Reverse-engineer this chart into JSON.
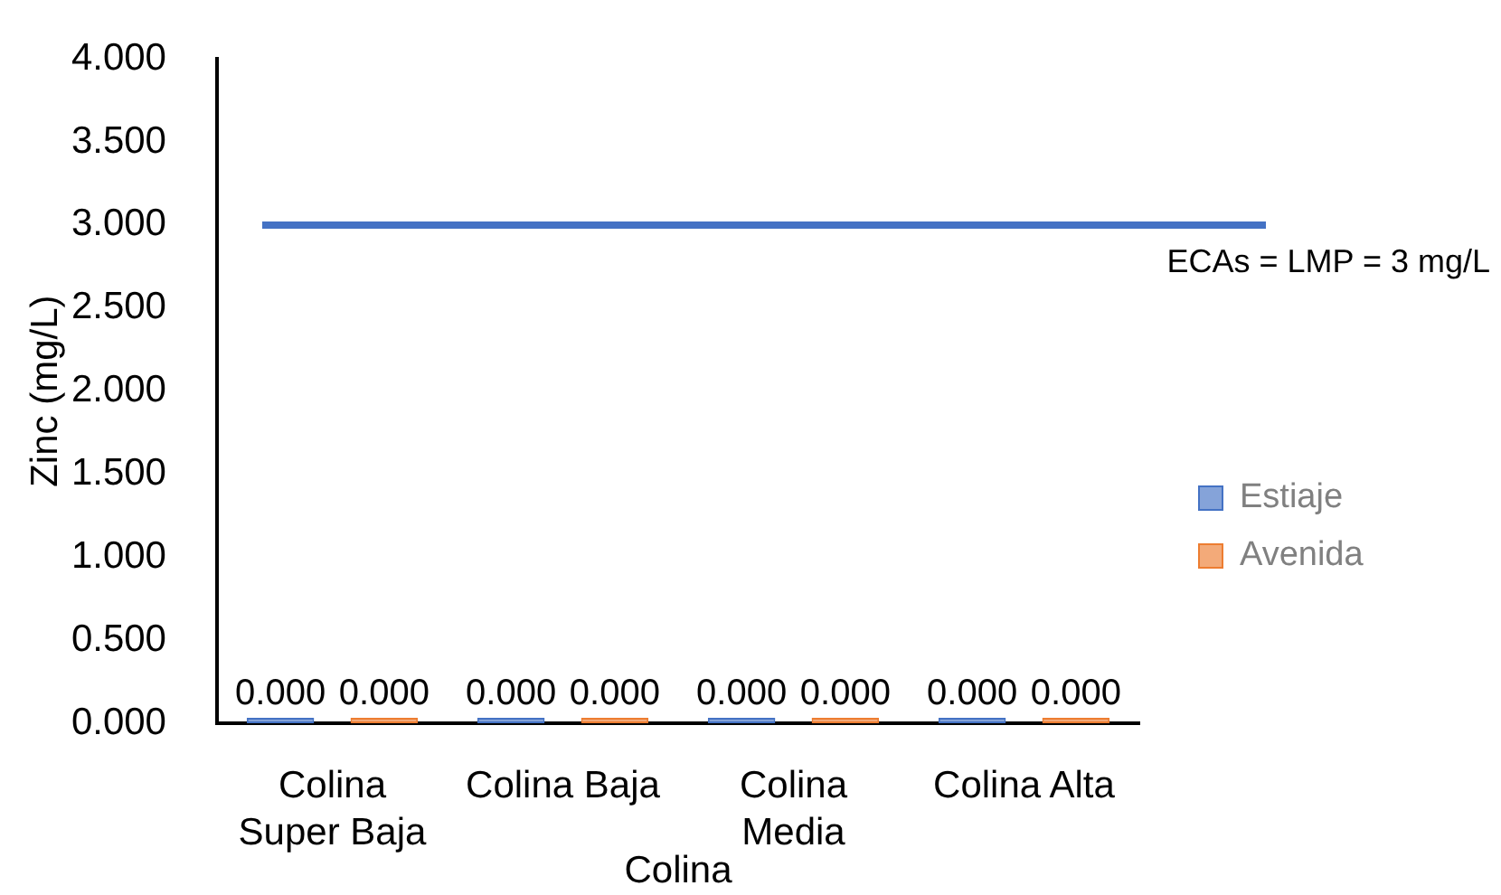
{
  "chart_data": {
    "type": "bar",
    "categories": [
      "Colina Super Baja",
      "Colina Baja",
      "Colina Media",
      "Colina Alta"
    ],
    "series": [
      {
        "name": "Estiaje",
        "color": "#4472c4",
        "values": [
          0,
          0,
          0,
          0
        ],
        "value_labels": [
          "0.000",
          "0.000",
          "0.000",
          "0.000"
        ]
      },
      {
        "name": "Avenida",
        "color": "#ed7d31",
        "values": [
          0,
          0,
          0,
          0
        ],
        "value_labels": [
          "0.000",
          "0.000",
          "0.000",
          "0.000"
        ]
      }
    ],
    "xlabel": "Colina",
    "ylabel": "Zinc (mg/L)",
    "ylim": [
      0,
      4
    ],
    "yticks": [
      {
        "value": 0,
        "label": "0.000"
      },
      {
        "value": 0.5,
        "label": "0.500"
      },
      {
        "value": 1,
        "label": "1.000"
      },
      {
        "value": 1.5,
        "label": "1.500"
      },
      {
        "value": 2,
        "label": "2.000"
      },
      {
        "value": 2.5,
        "label": "2.500"
      },
      {
        "value": 3,
        "label": "3.000"
      },
      {
        "value": 3.5,
        "label": "3.500"
      },
      {
        "value": 4,
        "label": "4.000"
      }
    ],
    "ref_lines": [
      {
        "axis": "y",
        "value": 3,
        "label": "ECAs = LMP = 3 mg/L",
        "color": "#4472c4"
      }
    ],
    "grid": false,
    "legend": "right"
  }
}
